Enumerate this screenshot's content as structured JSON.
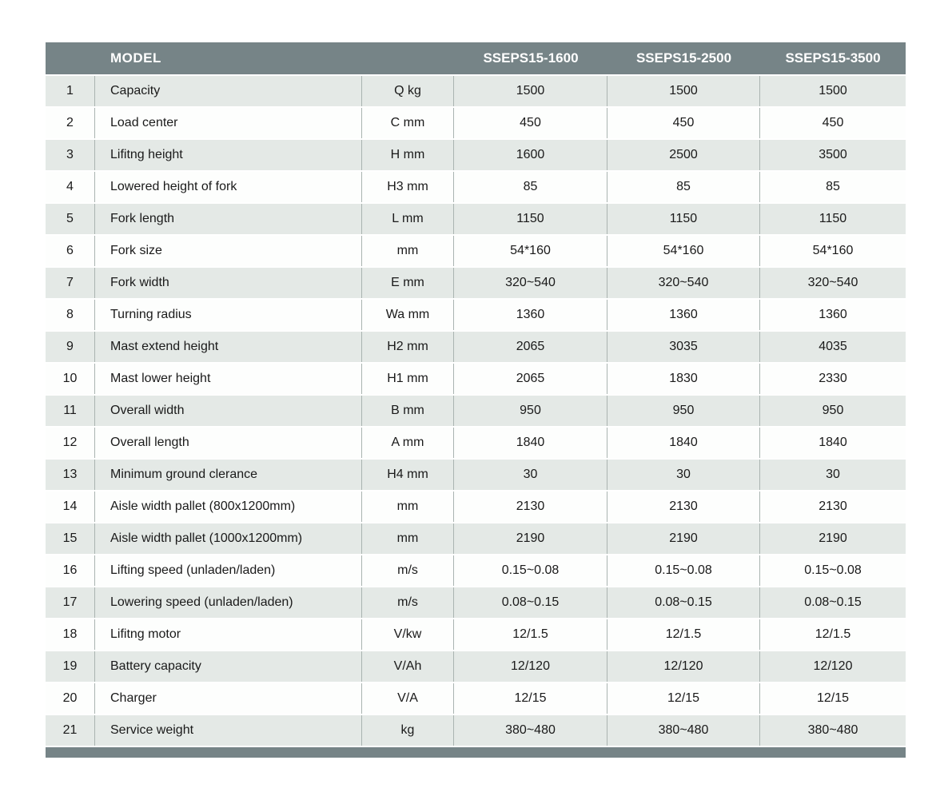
{
  "table": {
    "header": {
      "model_label": "MODEL",
      "models": [
        "SSEPS15-1600",
        "SSEPS15-2500",
        "SSEPS15-3500"
      ]
    },
    "rows": [
      {
        "no": "1",
        "param": "Capacity",
        "unit": "Q kg",
        "values": [
          "1500",
          "1500",
          "1500"
        ]
      },
      {
        "no": "2",
        "param": "Load center",
        "unit": "C mm",
        "values": [
          "450",
          "450",
          "450"
        ]
      },
      {
        "no": "3",
        "param": "Lifitng height",
        "unit": "H mm",
        "values": [
          "1600",
          "2500",
          "3500"
        ]
      },
      {
        "no": "4",
        "param": "Lowered height of fork",
        "unit": "H3 mm",
        "values": [
          "85",
          "85",
          "85"
        ]
      },
      {
        "no": "5",
        "param": "Fork length",
        "unit": "L mm",
        "values": [
          "1150",
          "1150",
          "1150"
        ]
      },
      {
        "no": "6",
        "param": "Fork size",
        "unit": "mm",
        "values": [
          "54*160",
          "54*160",
          "54*160"
        ]
      },
      {
        "no": "7",
        "param": "Fork width",
        "unit": "E mm",
        "values": [
          "320~540",
          "320~540",
          "320~540"
        ]
      },
      {
        "no": "8",
        "param": "Turning radius",
        "unit": "Wa mm",
        "values": [
          "1360",
          "1360",
          "1360"
        ]
      },
      {
        "no": "9",
        "param": "Mast extend height",
        "unit": "H2 mm",
        "values": [
          "2065",
          "3035",
          "4035"
        ]
      },
      {
        "no": "10",
        "param": "Mast lower height",
        "unit": "H1 mm",
        "values": [
          "2065",
          "1830",
          "2330"
        ]
      },
      {
        "no": "11",
        "param": "Overall width",
        "unit": "B mm",
        "values": [
          "950",
          "950",
          "950"
        ]
      },
      {
        "no": "12",
        "param": "Overall length",
        "unit": "A mm",
        "values": [
          "1840",
          "1840",
          "1840"
        ]
      },
      {
        "no": "13",
        "param": "Minimum ground clerance",
        "unit": "H4 mm",
        "values": [
          "30",
          "30",
          "30"
        ]
      },
      {
        "no": "14",
        "param": "Aisle width pallet (800x1200mm)",
        "unit": "mm",
        "values": [
          "2130",
          "2130",
          "2130"
        ]
      },
      {
        "no": "15",
        "param": "Aisle width pallet (1000x1200mm)",
        "unit": "mm",
        "values": [
          "2190",
          "2190",
          "2190"
        ]
      },
      {
        "no": "16",
        "param": "Lifting speed (unladen/laden)",
        "unit": "m/s",
        "values": [
          "0.15~0.08",
          "0.15~0.08",
          "0.15~0.08"
        ]
      },
      {
        "no": "17",
        "param": "Lowering speed (unladen/laden)",
        "unit": "m/s",
        "values": [
          "0.08~0.15",
          "0.08~0.15",
          "0.08~0.15"
        ]
      },
      {
        "no": "18",
        "param": "Lifitng motor",
        "unit": "V/kw",
        "values": [
          "12/1.5",
          "12/1.5",
          "12/1.5"
        ]
      },
      {
        "no": "19",
        "param": "Battery capacity",
        "unit": "V/Ah",
        "values": [
          "12/120",
          "12/120",
          "12/120"
        ]
      },
      {
        "no": "20",
        "param": "Charger",
        "unit": "V/A",
        "values": [
          "12/15",
          "12/15",
          "12/15"
        ]
      },
      {
        "no": "21",
        "param": "Service weight",
        "unit": "kg",
        "values": [
          "380~480",
          "380~480",
          "380~480"
        ]
      }
    ],
    "colors": {
      "header_bg": "#768487",
      "header_text": "#ffffff",
      "row_alt_bg": "#e4e9e6",
      "row_bg": "#fdfefd",
      "divider": "#aab4b1",
      "body_text": "#1a1a1a"
    }
  }
}
